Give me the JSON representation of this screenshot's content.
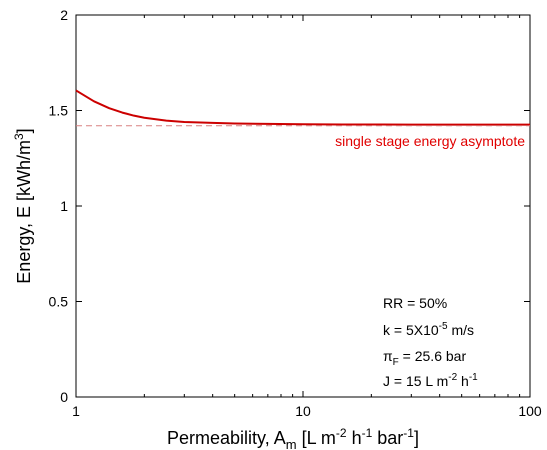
{
  "chart_data": {
    "type": "line",
    "title": "",
    "xlabel": {
      "text": "Permeability, A",
      "sub": "m",
      "units_open": " [L m",
      "sup1": "-2",
      "mid1": " h",
      "sup2": "-1",
      "mid2": " bar",
      "sup3": "-1",
      "units_close": "]"
    },
    "ylabel": {
      "text": "Energy, E [kWh/m",
      "sup": "3",
      "close": "]"
    },
    "x_scale": "log",
    "xlim": [
      1,
      100
    ],
    "ylim": [
      0,
      2
    ],
    "x_ticks": [
      1,
      10,
      100
    ],
    "x_tick_labels": [
      "1",
      "10",
      "100"
    ],
    "y_ticks": [
      0,
      0.5,
      1,
      1.5,
      2
    ],
    "y_tick_labels": [
      "0",
      "0.5",
      "1",
      "1.5",
      "2"
    ],
    "grid": false,
    "series": [
      {
        "style": "solid",
        "color": "#cc0000",
        "x": [
          1,
          1.2,
          1.4,
          1.6,
          1.8,
          2,
          2.5,
          3,
          4,
          5,
          7,
          10,
          15,
          20,
          30,
          50,
          70,
          100
        ],
        "y": [
          1.605,
          1.548,
          1.512,
          1.489,
          1.473,
          1.462,
          1.447,
          1.44,
          1.435,
          1.432,
          1.43,
          1.428,
          1.427,
          1.427,
          1.426,
          1.426,
          1.426,
          1.426
        ]
      },
      {
        "style": "dashed",
        "color": "#d98080",
        "x": [
          1,
          100
        ],
        "y": [
          1.42,
          1.42
        ]
      }
    ],
    "annotations": {
      "asymptote_label": "single stage energy asymptote",
      "asymptote_color": "#e00000",
      "rr": "RR = 50%",
      "k": {
        "pre": "k = 5X10",
        "sup": "-5",
        "post": " m/s"
      },
      "pi": {
        "symbol": "π",
        "sub": "F",
        "post": " = 25.6 bar"
      },
      "j": {
        "pre": "J = 15 L m",
        "sup1": "-2",
        "mid": " h",
        "sup2": "-1"
      }
    }
  }
}
